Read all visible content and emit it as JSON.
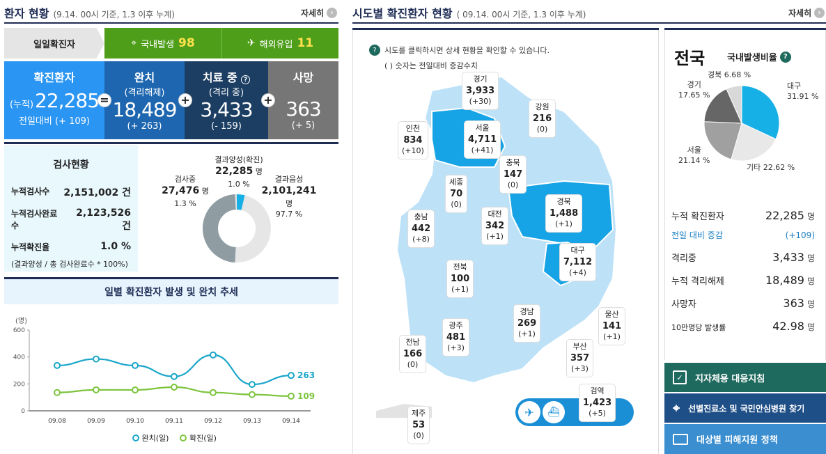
{
  "left": {
    "title": "환자 현황",
    "subtitle": "(9.14. 00시 기준, 1.3 이후 누계)",
    "more": "자세히",
    "daily": {
      "label": "일일확진자",
      "domestic_label": "국내발생",
      "domestic_value": "98",
      "overseas_label": "해외유입",
      "overseas_value": "11"
    },
    "confirmed": {
      "title": "확진환자",
      "prefix": "(누적)",
      "value": "22,285",
      "delta": "전일대비 (+ 109)"
    },
    "released": {
      "title": "완치",
      "sub": "(격리해제)",
      "value": "18,489",
      "delta": "(+ 263)"
    },
    "treatment": {
      "title": "치료 중",
      "sub": "(격리 중)",
      "value": "3,433",
      "delta": "(- 159)"
    },
    "death": {
      "title": "사망",
      "value": "363",
      "delta": "(+ 5)"
    },
    "tests": {
      "title": "검사현황",
      "rows": [
        {
          "label": "누적검사수",
          "value": "2,151,002 건"
        },
        {
          "label": "누적검사완료수",
          "value": "2,123,526 건"
        },
        {
          "label": "누적확진율",
          "value": "1.0 %"
        }
      ],
      "note": "(결과양성 / 총 검사완료수 * 100%)",
      "testing_label": "검사중",
      "testing_value": "27,476",
      "testing_unit": "명",
      "testing_pct": "1.3 %",
      "positive_label": "결과양성(확진)",
      "positive_value": "22,285",
      "positive_unit": "명",
      "positive_pct": "1.0 %",
      "negative_label": "결과음성",
      "negative_value": "2,101,241",
      "negative_unit": "명",
      "negative_pct": "97.7 %"
    },
    "trend": {
      "title": "일별 확진환자 발생 및 완치 추세",
      "unit": "(명)",
      "legend_release": "완치(일)",
      "legend_confirm": "확진(일)"
    }
  },
  "chart_data": {
    "type": "line",
    "categories": [
      "09.08",
      "09.09",
      "09.10",
      "09.11",
      "09.12",
      "09.13",
      "09.14"
    ],
    "series": [
      {
        "name": "완치(일)",
        "values": [
          337,
          385,
          337,
          255,
          415,
          196,
          263
        ],
        "color": "#1aa6c9"
      },
      {
        "name": "확진(일)",
        "values": [
          136,
          156,
          155,
          176,
          136,
          121,
          109
        ],
        "color": "#7dc43d"
      }
    ],
    "yticks": [
      "0",
      "200",
      "400",
      "600"
    ],
    "ylim": [
      0,
      600
    ],
    "end_labels": [
      "263",
      "109"
    ]
  },
  "map": {
    "title": "시도별 확진환자 현황",
    "subtitle": "( 09.14. 00시 기준, 1.3 이후 누계)",
    "more": "자세히",
    "help": "시도를 클릭하시면 상세 현황을 확인할 수 있습니다.",
    "help2": "( ) 숫자는 전일대비 증감수치",
    "regions": [
      {
        "name": "경기",
        "value": "3,933",
        "delta": "(+30)"
      },
      {
        "name": "강원",
        "value": "216",
        "delta": "(0)"
      },
      {
        "name": "인천",
        "value": "834",
        "delta": "(+10)"
      },
      {
        "name": "서울",
        "value": "4,711",
        "delta": "(+41)"
      },
      {
        "name": "충북",
        "value": "147",
        "delta": "(0)"
      },
      {
        "name": "세종",
        "value": "70",
        "delta": "(0)"
      },
      {
        "name": "충남",
        "value": "442",
        "delta": "(+8)"
      },
      {
        "name": "대전",
        "value": "342",
        "delta": "(+1)"
      },
      {
        "name": "경북",
        "value": "1,488",
        "delta": "(+1)"
      },
      {
        "name": "대구",
        "value": "7,112",
        "delta": "(+4)"
      },
      {
        "name": "전북",
        "value": "100",
        "delta": "(+1)"
      },
      {
        "name": "경남",
        "value": "269",
        "delta": "(+1)"
      },
      {
        "name": "울산",
        "value": "141",
        "delta": "(+1)"
      },
      {
        "name": "광주",
        "value": "481",
        "delta": "(+3)"
      },
      {
        "name": "부산",
        "value": "357",
        "delta": "(+3)"
      },
      {
        "name": "전남",
        "value": "166",
        "delta": "(0)"
      },
      {
        "name": "검역",
        "value": "1,423",
        "delta": "(+5)"
      },
      {
        "name": "제주",
        "value": "53",
        "delta": "(0)"
      }
    ]
  },
  "right": {
    "title": "전국",
    "ratio_label": "국내발생비율",
    "pie": [
      {
        "name": "대구",
        "pct": "31.91 %",
        "value": 31.91,
        "color": "#17b0e6"
      },
      {
        "name": "기타",
        "pct": "22.62 %",
        "value": 22.62,
        "color": "#e8e8e8"
      },
      {
        "name": "서울",
        "pct": "21.14 %",
        "value": 21.14,
        "color": "#a0a0a0"
      },
      {
        "name": "경기",
        "pct": "17.65 %",
        "value": 17.65,
        "color": "#666666"
      },
      {
        "name": "경북",
        "pct": "6.68 %",
        "value": 6.68,
        "color": "#d8d8d8"
      }
    ],
    "stats": [
      {
        "label": "누적 확진환자",
        "value": "22,285",
        "unit": "명"
      },
      {
        "label": "전일 대비 증감",
        "value": "(+109)",
        "unit": ""
      },
      {
        "label": "격리중",
        "value": "3,433",
        "unit": "명"
      },
      {
        "label": "누적 격리해제",
        "value": "18,489",
        "unit": "명"
      },
      {
        "label": "사망자",
        "value": "363",
        "unit": "명"
      },
      {
        "label": "10만명당 발생률",
        "value": "42.98",
        "unit": "명"
      }
    ],
    "buttons": [
      "지자체용 대응지침",
      "선별진료소 및 국민안심병원 찾기",
      "대상별 피해지원 정책"
    ]
  }
}
